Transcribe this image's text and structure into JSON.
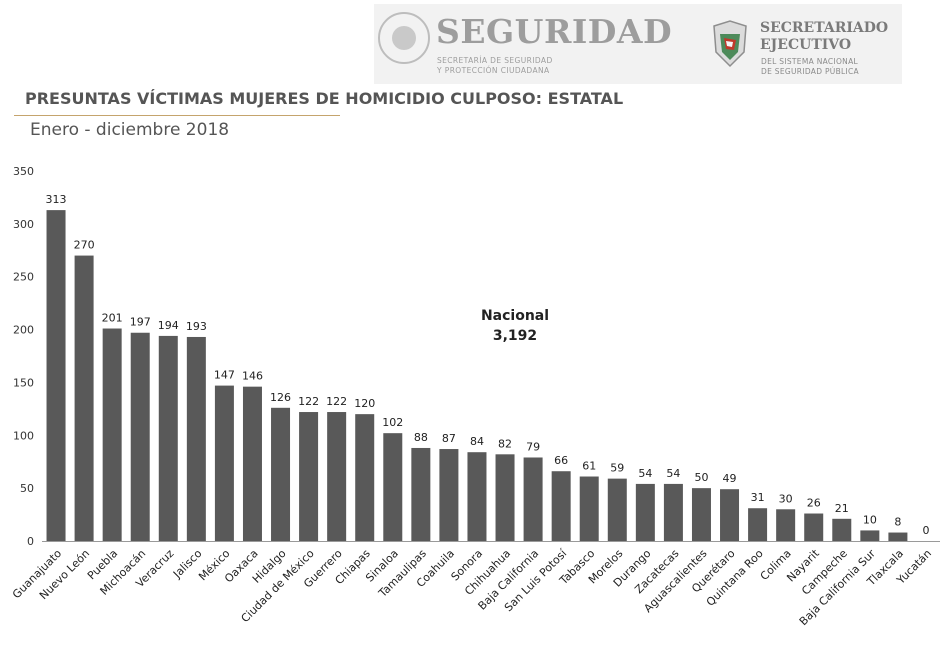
{
  "header": {
    "brand_title": "SEGURIDAD",
    "brand_sub_1": "SECRETARÍA DE SEGURIDAD",
    "brand_sub_2": "Y PROTECCIÓN CIUDADANA",
    "secretariado_1": "SECRETARIADO",
    "secretariado_2": "EJECUTIVO",
    "secretariado_sub_1": "DEL SISTEMA NACIONAL",
    "secretariado_sub_2": "DE SEGURIDAD PÚBLICA"
  },
  "chart_data": {
    "type": "bar",
    "title": "PRESUNTAS VÍCTIMAS MUJERES DE HOMICIDIO CULPOSO: ESTATAL",
    "subtitle": "Enero - diciembre 2018",
    "annotation_label": "Nacional",
    "annotation_value": "3,192",
    "categories": [
      "Guanajuato",
      "Nuevo León",
      "Puebla",
      "Michoacán",
      "Veracruz",
      "Jalisco",
      "México",
      "Oaxaca",
      "Hidalgo",
      "Ciudad de México",
      "Guerrero",
      "Chiapas",
      "Sinaloa",
      "Tamaulipas",
      "Coahuila",
      "Sonora",
      "Chihuahua",
      "Baja California",
      "San Luis Potosí",
      "Tabasco",
      "Morelos",
      "Durango",
      "Zacatecas",
      "Aguascalientes",
      "Querétaro",
      "Quintana Roo",
      "Colima",
      "Nayarit",
      "Campeche",
      "Baja California Sur",
      "Tlaxcala",
      "Yucatán"
    ],
    "values": [
      313,
      270,
      201,
      197,
      194,
      193,
      147,
      146,
      126,
      122,
      122,
      120,
      102,
      88,
      87,
      84,
      82,
      79,
      66,
      61,
      59,
      54,
      54,
      50,
      49,
      31,
      30,
      26,
      21,
      10,
      8,
      0
    ],
    "ylim": [
      0,
      350
    ],
    "yticks": [
      0,
      50,
      100,
      150,
      200,
      250,
      300,
      350
    ],
    "grid": false,
    "bar_color": "#595959"
  }
}
